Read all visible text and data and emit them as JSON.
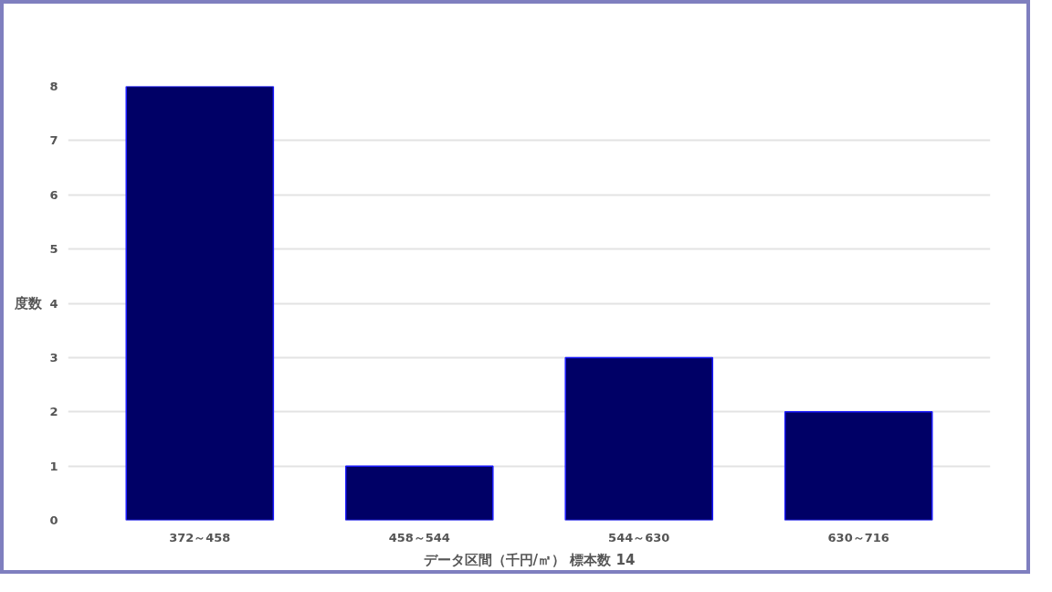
{
  "chart_data": {
    "type": "bar",
    "categories": [
      "372～458",
      "458～544",
      "544～630",
      "630～716"
    ],
    "values": [
      8,
      1,
      3,
      2
    ],
    "color": "#000066",
    "xlabel": "データ区間（千円/㎡） 標本数 14",
    "ylabel": "度数",
    "ylim": [
      0,
      8
    ],
    "yticks": [
      0,
      1,
      2,
      3,
      4,
      5,
      6,
      7,
      8
    ],
    "grid": "y"
  }
}
